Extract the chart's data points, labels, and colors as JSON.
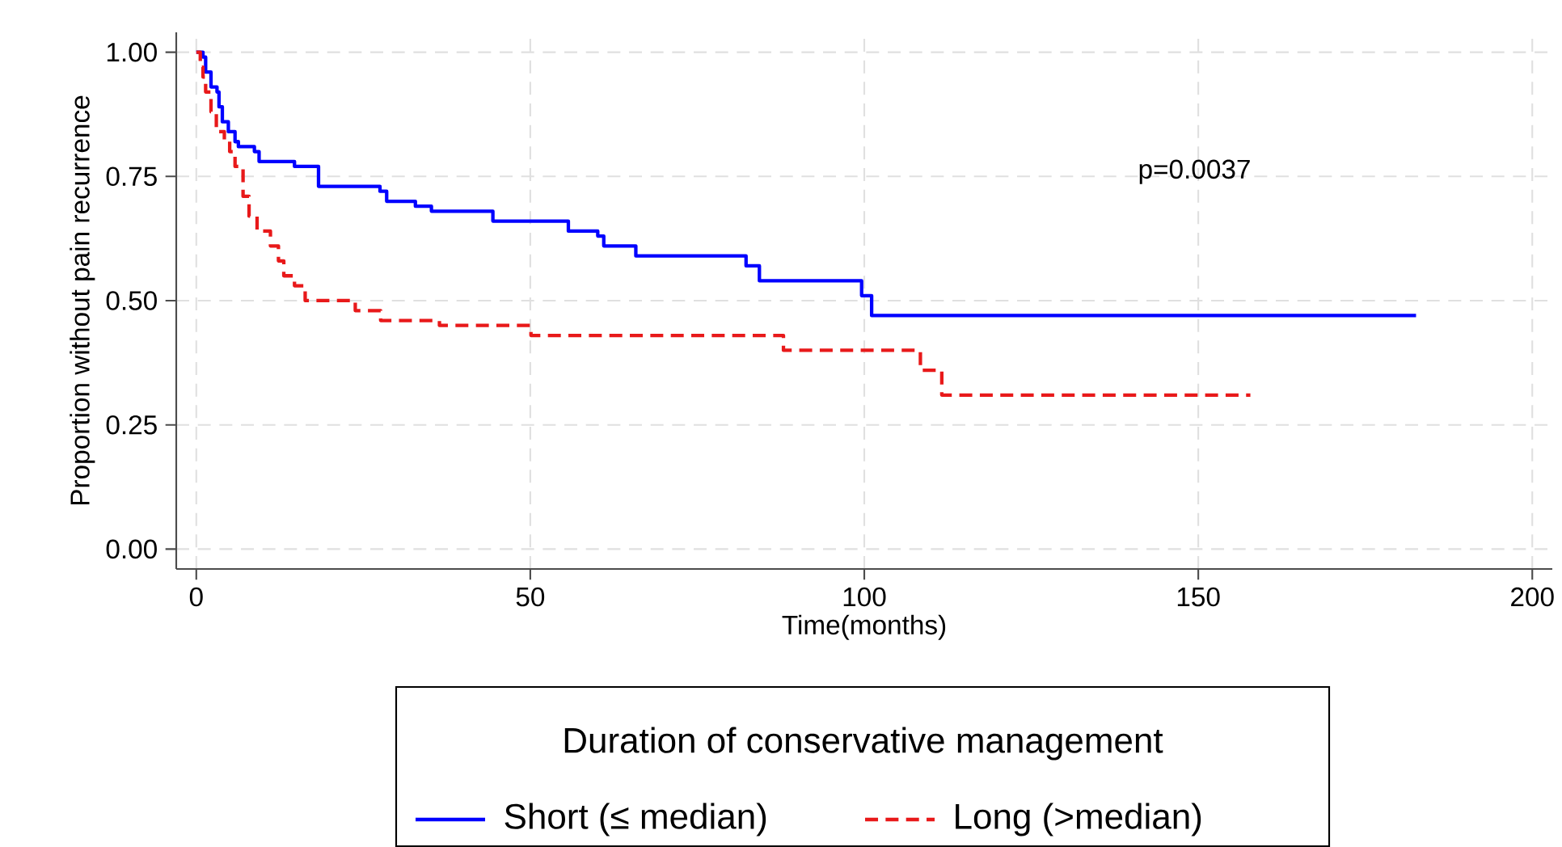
{
  "chart_data": {
    "type": "step",
    "xlabel": "Time(months)",
    "ylabel": "Proportion without pain recurrence",
    "legend_title": "Duration of conservative management",
    "legend": "bottom",
    "grid": true,
    "xlim": [
      -3,
      203
    ],
    "ylim": [
      -0.04,
      1.04
    ],
    "xticks": [
      0,
      50,
      100,
      150,
      200
    ],
    "yticks": [
      {
        "value": 0,
        "label": "0.00"
      },
      {
        "value": 0.25,
        "label": "0.25"
      },
      {
        "value": 0.5,
        "label": "0.50"
      },
      {
        "value": 0.75,
        "label": "0.75"
      },
      {
        "value": 1,
        "label": "1.00"
      }
    ],
    "annotations": [
      "p=0.0037"
    ],
    "series": [
      {
        "name": "Short (≤ median)",
        "color": "#0000ff",
        "line_style": "solid",
        "x": [
          0,
          1,
          1.4,
          2.2,
          3.1,
          3.4,
          3.9,
          4.8,
          5.8,
          6.3,
          8.7,
          9.4,
          14.7,
          18.3,
          27.5,
          28.5,
          32.8,
          35.2,
          44.4,
          55.7,
          60.1,
          61,
          65.8,
          82.3,
          84.3,
          99.6,
          101.1,
          182.6
        ],
        "values": [
          1,
          0.99,
          0.96,
          0.93,
          0.92,
          0.89,
          0.86,
          0.84,
          0.82,
          0.81,
          0.8,
          0.78,
          0.77,
          0.73,
          0.72,
          0.7,
          0.69,
          0.68,
          0.66,
          0.64,
          0.63,
          0.61,
          0.59,
          0.57,
          0.54,
          0.51,
          0.47,
          0.47
        ]
      },
      {
        "name": "Long (>median)",
        "color": "#e8191a",
        "line_style": "dashed",
        "x": [
          0,
          0.6,
          1.0,
          1.4,
          2.2,
          3.0,
          4.2,
          5.0,
          5.8,
          7.0,
          7.9,
          9.1,
          11.1,
          12.3,
          13.1,
          14.7,
          16.3,
          23.8,
          27.6,
          36.4,
          50.1,
          87.9,
          108.4,
          111.6,
          157.8
        ],
        "values": [
          1,
          0.97,
          0.95,
          0.92,
          0.88,
          0.84,
          0.82,
          0.8,
          0.77,
          0.71,
          0.67,
          0.64,
          0.61,
          0.58,
          0.55,
          0.53,
          0.5,
          0.48,
          0.46,
          0.45,
          0.43,
          0.4,
          0.36,
          0.31,
          0.31
        ]
      }
    ]
  }
}
